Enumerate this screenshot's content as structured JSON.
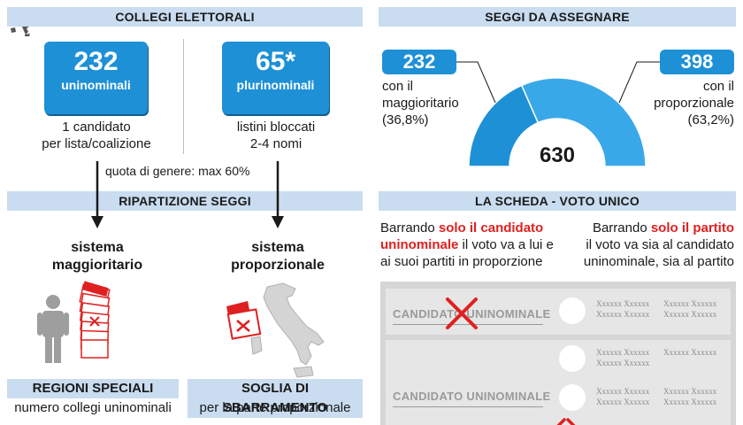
{
  "collegi": {
    "header": "COLLEGI ELETTORALI",
    "uninominali": {
      "number": "232",
      "label": "uninominali",
      "caption_line1": "1 candidato",
      "caption_line2": "per lista/coalizione"
    },
    "plurinominali": {
      "number": "65*",
      "label": "plurinominali",
      "caption_line1": "listini bloccati",
      "caption_line2": "2-4 nomi"
    },
    "quota": "quota di genere: max 60%"
  },
  "ripartizione": {
    "header": "RIPARTIZIONE SEGGI",
    "left_line1": "sistema",
    "left_line2": "maggioritario",
    "right_line1": "sistema",
    "right_line2": "proporzionale"
  },
  "seggi": {
    "header": "SEGGI DA ASSEGNARE",
    "left_value": "232",
    "left_line1": "con il",
    "left_line2": "maggioritario",
    "left_line3": "(36,8%)",
    "right_value": "398",
    "right_line1": "con il",
    "right_line2": "proporzionale",
    "right_line3": "(63,2%)",
    "total": "630",
    "colors": {
      "maggioritario": "#1e90d6",
      "proporzionale": "#39a8e8"
    }
  },
  "chart_data": {
    "type": "pie",
    "categories": [
      "con il maggioritario",
      "con il proporzionale"
    ],
    "values": [
      232,
      398
    ],
    "total": 630,
    "percent_labels": [
      "(36,8%)",
      "(63,2%)"
    ]
  },
  "scheda": {
    "header": "LA SCHEDA - VOTO UNICO",
    "left_pre": "Barrando ",
    "left_red1": "solo il candidato",
    "left_red2": "uninominale",
    "left_post1": " il voto va a lui e",
    "left_line3": "ai suoi partiti in proporzione",
    "right_pre": "Barrando ",
    "right_red": "solo il partito",
    "right_line2": "il voto va sia al candidato",
    "right_line3": "uninominale, sia al partito",
    "ballot_label_1": "CANDIDATO UNINOMINALE",
    "ballot_label_2": "CANDIDATO UNINOMINALE",
    "placeholder": "Xxxxxx Xxxxxx"
  },
  "bottom": {
    "left_title": "REGIONI SPECIALI",
    "left_sub": "numero collegi uninominali",
    "right_title": "SOGLIA DI SBARRAMENTO",
    "right_sub": "per la parte proporzionale"
  }
}
